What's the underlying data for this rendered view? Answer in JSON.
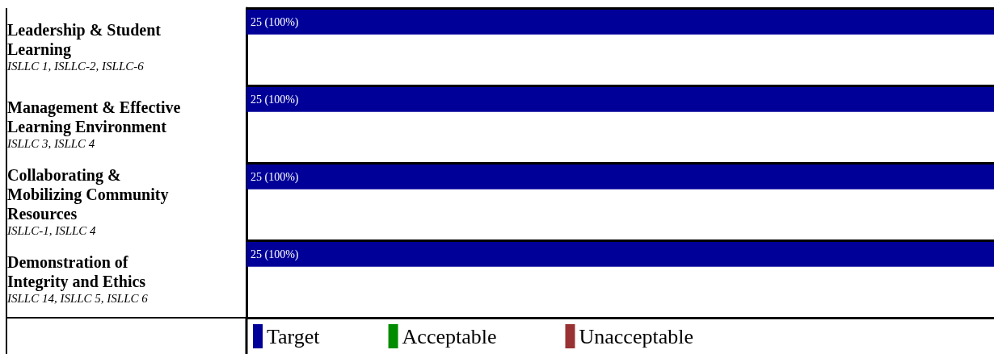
{
  "chart_data": {
    "type": "bar",
    "orientation": "horizontal",
    "categories": [
      "Leadership & Student Learning\nISLLC 1, ISLLC-2, ISLLC-6",
      "Management & Effective Learning Environment\nISLLC 3, ISLLC 4",
      "Collaborating & Mobilizing Community Resources\nISLLC-1, ISLLC 4",
      "Demonstration of Integrity and Ethics\nISLLC 14, ISLLC 5, ISLLC 6"
    ],
    "series": [
      {
        "name": "Target",
        "color": "#000099",
        "values": [
          25,
          25,
          25,
          25
        ],
        "value_labels": [
          "25 (100%)",
          "25 (100%)",
          "25 (100%)",
          "25 (100%)"
        ]
      },
      {
        "name": "Acceptable",
        "color": "#008c00",
        "values": [
          null,
          null,
          null,
          null
        ]
      },
      {
        "name": "Unacceptable",
        "color": "#993333",
        "values": [
          null,
          null,
          null,
          null
        ]
      }
    ],
    "legend": "bottom"
  }
}
